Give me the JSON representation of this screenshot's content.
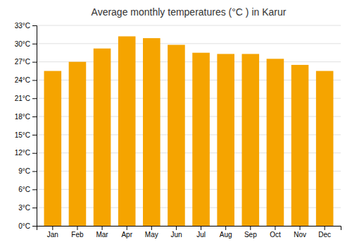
{
  "chart_data": {
    "type": "bar",
    "title": "Average monthly temperatures (°C ) in Karur",
    "categories": [
      "Jan",
      "Feb",
      "Mar",
      "Apr",
      "May",
      "Jun",
      "Jul",
      "Aug",
      "Sep",
      "Oct",
      "Nov",
      "Dec"
    ],
    "values": [
      25.5,
      27.0,
      29.2,
      31.2,
      30.9,
      29.8,
      28.5,
      28.3,
      28.3,
      27.5,
      26.5,
      25.5
    ],
    "color": "#F5A400",
    "ylim": [
      0,
      33
    ],
    "yticks": [
      {
        "value": 0,
        "label": "0°C"
      },
      {
        "value": 3,
        "label": "3°C"
      },
      {
        "value": 6,
        "label": "6°C"
      },
      {
        "value": 9,
        "label": "9°C"
      },
      {
        "value": 12,
        "label": "12°C"
      },
      {
        "value": 15,
        "label": "15°C"
      },
      {
        "value": 18,
        "label": "18°C"
      },
      {
        "value": 21,
        "label": "21°C"
      },
      {
        "value": 24,
        "label": "24°C"
      },
      {
        "value": 27,
        "label": "27°C"
      },
      {
        "value": 30,
        "label": "30°C"
      },
      {
        "value": 33,
        "label": "33°C"
      }
    ],
    "grid": true
  }
}
